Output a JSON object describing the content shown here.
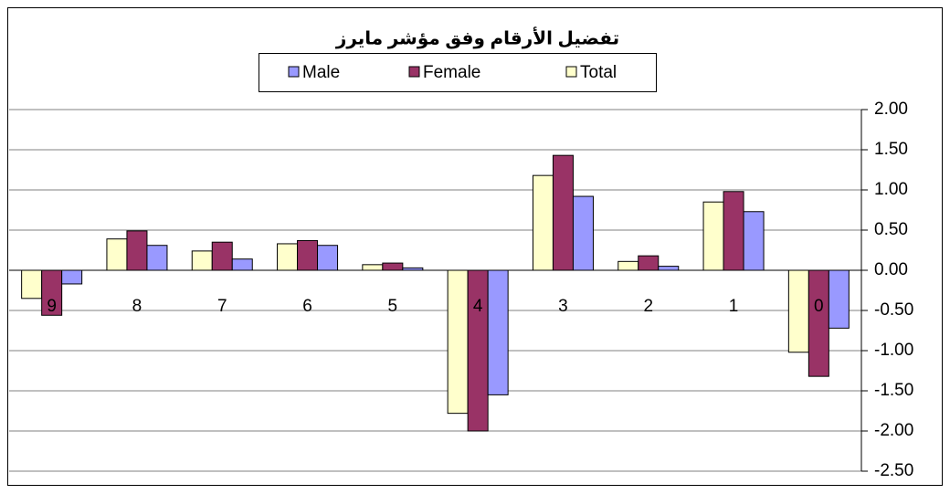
{
  "chart_data": {
    "type": "bar",
    "title": "تفضيل الأرقام وفق مؤشر مايرز",
    "categories": [
      "9",
      "8",
      "7",
      "6",
      "5",
      "4",
      "3",
      "2",
      "1",
      "0"
    ],
    "series": [
      {
        "name": "Male",
        "color": "#9999ff",
        "values": [
          -0.17,
          0.31,
          0.14,
          0.31,
          0.03,
          -1.55,
          0.92,
          0.05,
          0.73,
          -0.72
        ]
      },
      {
        "name": "Female",
        "color": "#993366",
        "values": [
          -0.56,
          0.49,
          0.35,
          0.37,
          0.09,
          -2.0,
          1.43,
          0.18,
          0.98,
          -1.32
        ]
      },
      {
        "name": "Total",
        "color": "#ffffcc",
        "values": [
          -0.35,
          0.39,
          0.24,
          0.33,
          0.07,
          -1.78,
          1.18,
          0.11,
          0.85,
          -1.02
        ]
      }
    ],
    "ylim": [
      -2.5,
      2
    ],
    "yticks": [
      {
        "value": 2,
        "label": "2.00"
      },
      {
        "value": 1.5,
        "label": "1.50"
      },
      {
        "value": 1,
        "label": "1.00"
      },
      {
        "value": 0.5,
        "label": "0.50"
      },
      {
        "value": 0,
        "label": "0.00"
      },
      {
        "value": -0.5,
        "label": "-0.50"
      },
      {
        "value": -1,
        "label": "-1.00"
      },
      {
        "value": -1.5,
        "label": "-1.50"
      },
      {
        "value": -2,
        "label": "-2.00"
      },
      {
        "value": -2.5,
        "label": "-2.50"
      }
    ],
    "grid": true,
    "y_axis_side": "right",
    "legend_position": "top"
  }
}
